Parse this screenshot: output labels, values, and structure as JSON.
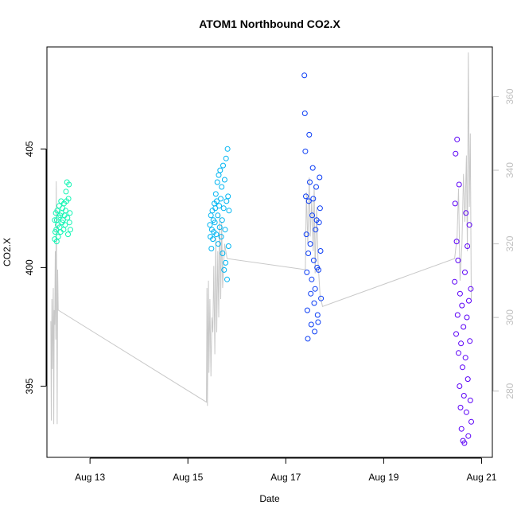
{
  "chart_data": {
    "type": "scatter",
    "title": "ATOM1 Northbound CO2.X",
    "xlabel": "Date",
    "ylabel": "CO2.X",
    "x_ticks": [
      "Aug 13",
      "Aug 15",
      "Aug 17",
      "Aug 19",
      "Aug 21"
    ],
    "x_tick_days": [
      13,
      15,
      17,
      19,
      21
    ],
    "xlim_days": [
      12.12,
      21.22
    ],
    "ylim": [
      392.0,
      409.3
    ],
    "y_ticks": [
      395,
      400,
      405
    ],
    "y2_ticks": [
      280,
      300,
      320,
      340,
      360
    ],
    "y2lim": [
      262.0,
      373.5
    ],
    "grid": false,
    "colors": {
      "line": "#c8c8c8",
      "axis": "#000000",
      "right_axis": "#c0c0c0"
    },
    "scatter_series": [
      {
        "color": "#12f5b4",
        "points": [
          [
            12.28,
            401.2
          ],
          [
            12.28,
            402.0
          ],
          [
            12.29,
            401.5
          ],
          [
            12.3,
            402.3
          ],
          [
            12.31,
            401.6
          ],
          [
            12.32,
            401.1
          ],
          [
            12.32,
            402.0
          ],
          [
            12.33,
            402.4
          ],
          [
            12.34,
            401.8
          ],
          [
            12.35,
            401.3
          ],
          [
            12.36,
            402.1
          ],
          [
            12.37,
            402.6
          ],
          [
            12.38,
            401.7
          ],
          [
            12.39,
            402.2
          ],
          [
            12.4,
            401.5
          ],
          [
            12.41,
            402.8
          ],
          [
            12.42,
            402.3
          ],
          [
            12.43,
            401.9
          ],
          [
            12.44,
            402.5
          ],
          [
            12.45,
            402.0
          ],
          [
            12.46,
            401.6
          ],
          [
            12.47,
            402.7
          ],
          [
            12.48,
            402.2
          ],
          [
            12.49,
            401.8
          ],
          [
            12.5,
            402.4
          ],
          [
            12.51,
            403.2
          ],
          [
            12.52,
            402.8
          ],
          [
            12.53,
            403.6
          ],
          [
            12.54,
            402.1
          ],
          [
            12.55,
            401.4
          ],
          [
            12.56,
            402.9
          ],
          [
            12.57,
            403.5
          ],
          [
            12.58,
            401.9
          ],
          [
            12.59,
            402.3
          ],
          [
            12.6,
            401.6
          ]
        ]
      },
      {
        "color": "#00b5f2",
        "points": [
          [
            15.45,
            401.8
          ],
          [
            15.46,
            401.3
          ],
          [
            15.47,
            402.2
          ],
          [
            15.48,
            400.8
          ],
          [
            15.49,
            401.6
          ],
          [
            15.5,
            402.4
          ],
          [
            15.51,
            401.2
          ],
          [
            15.52,
            402.0
          ],
          [
            15.53,
            401.5
          ],
          [
            15.54,
            402.7
          ],
          [
            15.55,
            401.9
          ],
          [
            15.56,
            402.5
          ],
          [
            15.57,
            403.1
          ],
          [
            15.58,
            401.4
          ],
          [
            15.59,
            402.8
          ],
          [
            15.6,
            403.6
          ],
          [
            15.61,
            402.2
          ],
          [
            15.62,
            401.0
          ],
          [
            15.63,
            403.9
          ],
          [
            15.64,
            402.6
          ],
          [
            15.65,
            401.7
          ],
          [
            15.66,
            404.1
          ],
          [
            15.67,
            402.9
          ],
          [
            15.68,
            401.3
          ],
          [
            15.69,
            403.4
          ],
          [
            15.7,
            402.0
          ],
          [
            15.71,
            400.6
          ],
          [
            15.72,
            404.3
          ],
          [
            15.73,
            402.5
          ],
          [
            15.74,
            399.9
          ],
          [
            15.75,
            403.7
          ],
          [
            15.76,
            401.6
          ],
          [
            15.77,
            400.2
          ],
          [
            15.78,
            404.6
          ],
          [
            15.79,
            402.8
          ],
          [
            15.8,
            399.5
          ],
          [
            15.81,
            405.0
          ],
          [
            15.82,
            403.0
          ],
          [
            15.83,
            400.9
          ],
          [
            15.84,
            402.4
          ]
        ]
      },
      {
        "color": "#0a3cf5",
        "points": [
          [
            17.38,
            408.1
          ],
          [
            17.39,
            406.5
          ],
          [
            17.4,
            404.9
          ],
          [
            17.41,
            403.0
          ],
          [
            17.42,
            401.4
          ],
          [
            17.43,
            399.8
          ],
          [
            17.44,
            398.2
          ],
          [
            17.45,
            397.0
          ],
          [
            17.46,
            400.6
          ],
          [
            17.47,
            402.8
          ],
          [
            17.48,
            405.6
          ],
          [
            17.49,
            403.6
          ],
          [
            17.5,
            401.0
          ],
          [
            17.51,
            398.9
          ],
          [
            17.52,
            397.6
          ],
          [
            17.53,
            399.5
          ],
          [
            17.54,
            402.2
          ],
          [
            17.55,
            404.2
          ],
          [
            17.56,
            402.9
          ],
          [
            17.57,
            400.3
          ],
          [
            17.58,
            398.5
          ],
          [
            17.59,
            397.3
          ],
          [
            17.6,
            399.1
          ],
          [
            17.61,
            401.6
          ],
          [
            17.62,
            403.4
          ],
          [
            17.63,
            402.0
          ],
          [
            17.64,
            400.0
          ],
          [
            17.65,
            398.0
          ],
          [
            17.66,
            397.7
          ],
          [
            17.67,
            399.9
          ],
          [
            17.68,
            401.9
          ],
          [
            17.69,
            403.8
          ],
          [
            17.7,
            402.5
          ],
          [
            17.71,
            400.7
          ],
          [
            17.72,
            398.7
          ]
        ]
      },
      {
        "color": "#5b00f7",
        "points": [
          [
            20.45,
            399.4
          ],
          [
            20.46,
            402.7
          ],
          [
            20.47,
            404.8
          ],
          [
            20.48,
            397.2
          ],
          [
            20.49,
            401.1
          ],
          [
            20.5,
            405.4
          ],
          [
            20.51,
            398.0
          ],
          [
            20.52,
            400.3
          ],
          [
            20.53,
            396.4
          ],
          [
            20.54,
            403.5
          ],
          [
            20.55,
            395.0
          ],
          [
            20.56,
            398.9
          ],
          [
            20.57,
            394.1
          ],
          [
            20.58,
            396.8
          ],
          [
            20.59,
            393.2
          ],
          [
            20.6,
            398.4
          ],
          [
            20.61,
            395.8
          ],
          [
            20.62,
            392.7
          ],
          [
            20.63,
            397.5
          ],
          [
            20.64,
            394.6
          ],
          [
            20.65,
            392.6
          ],
          [
            20.66,
            399.8
          ],
          [
            20.67,
            396.2
          ],
          [
            20.68,
            402.3
          ],
          [
            20.69,
            393.9
          ],
          [
            20.7,
            397.9
          ],
          [
            20.71,
            400.9
          ],
          [
            20.72,
            395.3
          ],
          [
            20.73,
            392.9
          ],
          [
            20.74,
            398.6
          ],
          [
            20.75,
            401.8
          ],
          [
            20.76,
            396.9
          ],
          [
            20.77,
            394.4
          ],
          [
            20.78,
            399.1
          ],
          [
            20.79,
            393.5
          ]
        ]
      }
    ],
    "line_series": {
      "color": "#c8c8c8",
      "axis": "right",
      "points": [
        [
          12.2,
          299
        ],
        [
          12.21,
          272
        ],
        [
          12.22,
          305
        ],
        [
          12.23,
          286
        ],
        [
          12.25,
          308
        ],
        [
          12.26,
          271
        ],
        [
          12.27,
          302
        ],
        [
          12.28,
          298
        ],
        [
          12.29,
          318
        ],
        [
          12.3,
          294
        ],
        [
          12.31,
          337
        ],
        [
          12.32,
          304
        ],
        [
          12.33,
          271
        ],
        [
          12.34,
          313
        ],
        [
          12.35,
          302
        ],
        [
          15.38,
          277
        ],
        [
          15.39,
          308
        ],
        [
          15.4,
          276
        ],
        [
          15.41,
          298
        ],
        [
          15.42,
          310
        ],
        [
          15.43,
          285
        ],
        [
          15.45,
          305
        ],
        [
          15.47,
          284
        ],
        [
          15.49,
          300
        ],
        [
          15.51,
          296
        ],
        [
          15.53,
          314
        ],
        [
          15.55,
          290
        ],
        [
          15.57,
          322
        ],
        [
          15.59,
          296
        ],
        [
          15.61,
          318
        ],
        [
          15.63,
          300
        ],
        [
          15.65,
          328
        ],
        [
          15.67,
          305
        ],
        [
          15.69,
          326
        ],
        [
          15.71,
          308
        ],
        [
          15.75,
          320
        ],
        [
          15.8,
          316
        ],
        [
          17.4,
          313
        ],
        [
          17.42,
          334
        ],
        [
          17.45,
          320
        ],
        [
          17.48,
          338
        ],
        [
          17.5,
          322
        ],
        [
          17.53,
          332
        ],
        [
          17.56,
          318
        ],
        [
          17.58,
          336
        ],
        [
          17.6,
          312
        ],
        [
          17.63,
          330
        ],
        [
          17.66,
          315
        ],
        [
          17.7,
          306
        ],
        [
          17.75,
          303
        ],
        [
          20.45,
          316
        ],
        [
          20.5,
          322
        ],
        [
          20.53,
          335
        ],
        [
          20.56,
          310
        ],
        [
          20.6,
          320
        ],
        [
          20.63,
          339
        ],
        [
          20.66,
          326
        ],
        [
          20.69,
          344
        ],
        [
          20.71,
          318
        ],
        [
          20.73,
          372
        ],
        [
          20.75,
          330
        ],
        [
          20.77,
          350
        ],
        [
          20.79,
          305
        ]
      ]
    }
  }
}
